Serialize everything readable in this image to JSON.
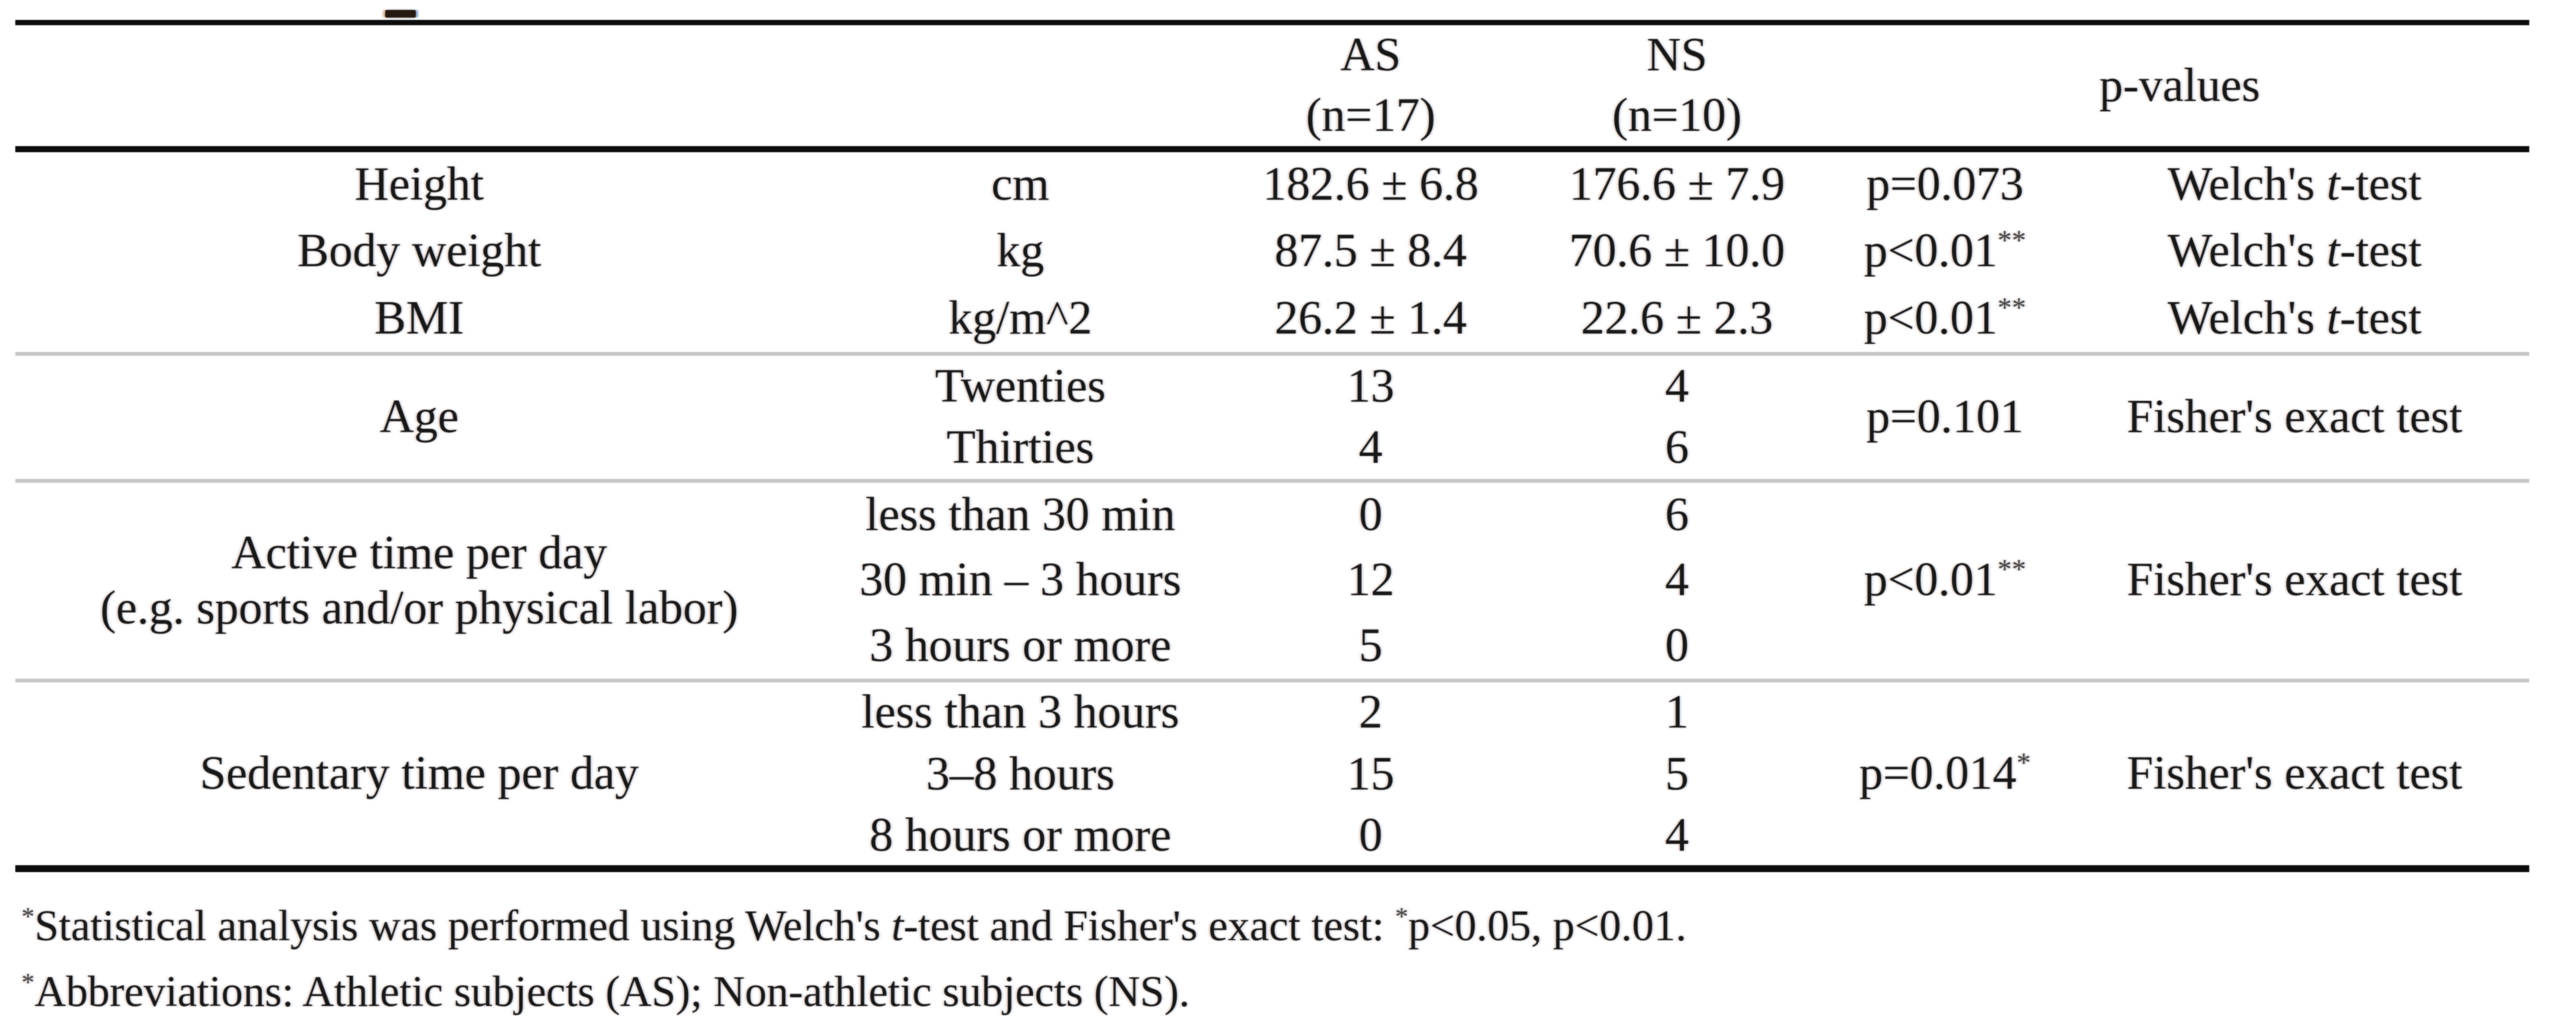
{
  "table": {
    "header": {
      "as": {
        "line1": "AS",
        "line2": "(n=17)"
      },
      "ns": {
        "line1": "NS",
        "line2": "(n=10)"
      },
      "p_values": "p-values"
    },
    "sections": [
      {
        "name": "anthropometrics",
        "rows": [
          {
            "param": [
              "Height"
            ],
            "category": "cm",
            "as": "182.6 ± 6.8",
            "ns": "176.6 ± 7.9",
            "p": [
              {
                "t": "p=0.073"
              }
            ],
            "test": [
              {
                "t": "Welch's "
              },
              {
                "t": "t",
                "s": "i"
              },
              {
                "t": "-test"
              }
            ]
          },
          {
            "param": [
              "Body weight"
            ],
            "category": "kg",
            "as": "87.5 ± 8.4",
            "ns": "70.6 ± 10.0",
            "p": [
              {
                "t": "p<0.01"
              },
              {
                "t": "**",
                "s": "sup"
              }
            ],
            "test": [
              {
                "t": "Welch's "
              },
              {
                "t": "t",
                "s": "i"
              },
              {
                "t": "-test"
              }
            ]
          },
          {
            "param": [
              "BMI"
            ],
            "category": "kg/m^2",
            "as": "26.2 ± 1.4",
            "ns": "22.6 ± 2.3",
            "p": [
              {
                "t": "p<0.01"
              },
              {
                "t": "**",
                "s": "sup"
              }
            ],
            "test": [
              {
                "t": "Welch's "
              },
              {
                "t": "t",
                "s": "i"
              },
              {
                "t": "-test"
              }
            ]
          }
        ]
      },
      {
        "name": "age",
        "param": [
          "Age"
        ],
        "p": [
          {
            "t": "p=0.101"
          }
        ],
        "test": [
          {
            "t": "Fisher's exact test"
          }
        ],
        "rows": [
          {
            "category": "Twenties",
            "as": "13",
            "ns": "4"
          },
          {
            "category": "Thirties",
            "as": "4",
            "ns": "6"
          }
        ]
      },
      {
        "name": "active-time-per-day",
        "param": [
          "Active time per day",
          "(e.g. sports and/or physical labor)"
        ],
        "p": [
          {
            "t": "p<0.01"
          },
          {
            "t": "**",
            "s": "sup"
          }
        ],
        "test": [
          {
            "t": "Fisher's exact test"
          }
        ],
        "rows": [
          {
            "category": "less than 30 min",
            "as": "0",
            "ns": "6"
          },
          {
            "category": "30 min – 3 hours",
            "as": "12",
            "ns": "4"
          },
          {
            "category": "3 hours or more",
            "as": "5",
            "ns": "0"
          }
        ]
      },
      {
        "name": "sedentary-time-per-day",
        "param": [
          "Sedentary time per day"
        ],
        "p": [
          {
            "t": "p=0.014"
          },
          {
            "t": "*",
            "s": "sup"
          }
        ],
        "test": [
          {
            "t": "Fisher's exact test"
          }
        ],
        "rows": [
          {
            "category": "less than 3 hours",
            "as": "2",
            "ns": "1"
          },
          {
            "category": "3–8 hours",
            "as": "15",
            "ns": "5"
          },
          {
            "category": "8 hours or more",
            "as": "0",
            "ns": "4"
          }
        ]
      }
    ]
  },
  "footnotes": [
    {
      "segments": [
        {
          "t": "*",
          "s": "sup"
        },
        {
          "t": "Statistical analysis was performed using  Welch's "
        },
        {
          "t": "t",
          "s": "i"
        },
        {
          "t": "-test and Fisher's exact test: "
        },
        {
          "t": "*",
          "s": "sup"
        },
        {
          "t": "p<0.05, p<0.01."
        }
      ]
    },
    {
      "segments": [
        {
          "t": "*",
          "s": "sup"
        },
        {
          "t": "Abbreviations: Athletic subjects (AS); Non-athletic subjects (NS)."
        }
      ]
    }
  ]
}
